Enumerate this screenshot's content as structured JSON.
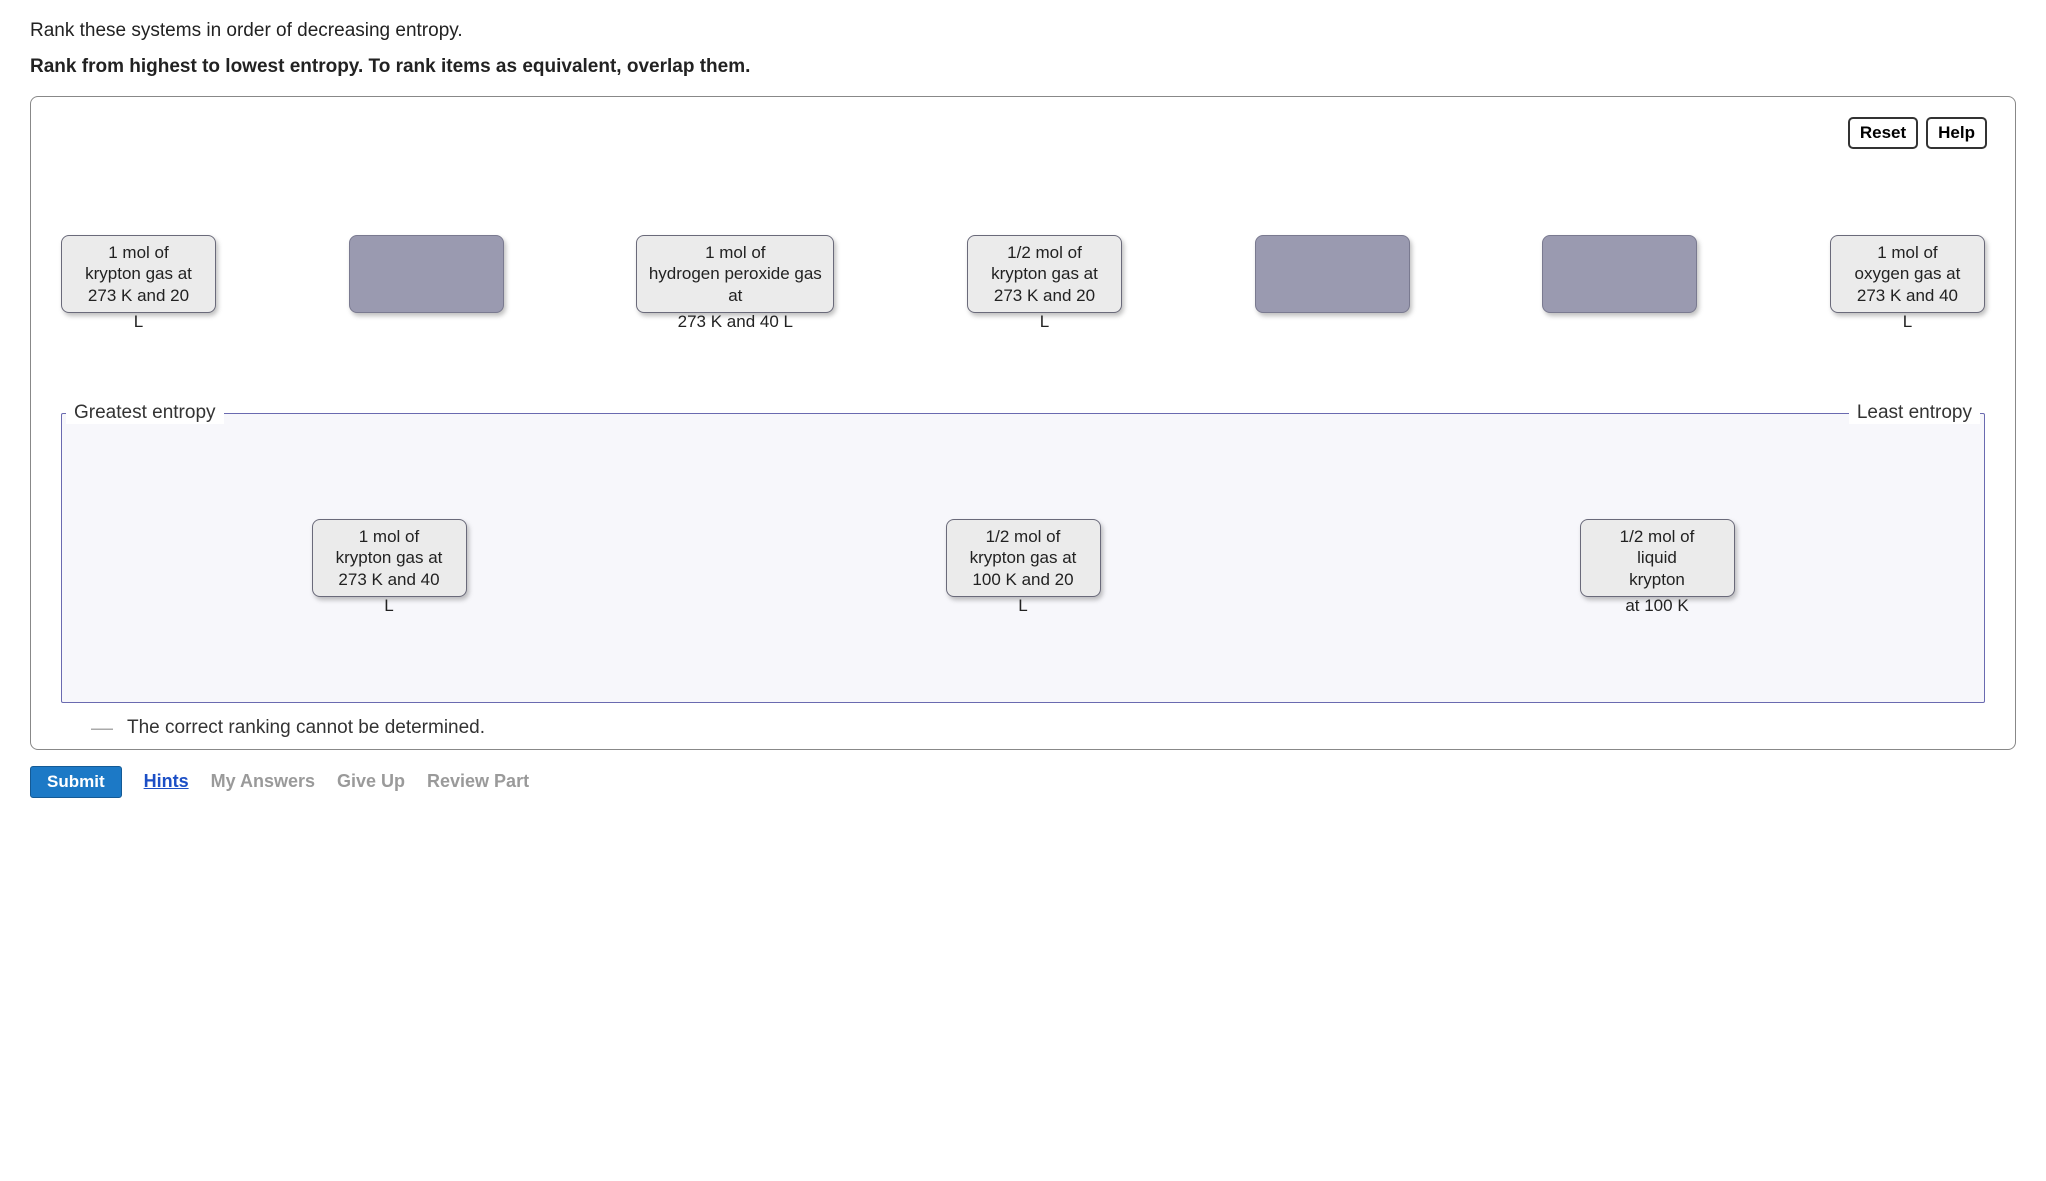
{
  "question": {
    "line1": "Rank these systems in order of decreasing entropy.",
    "line2_bold": "Rank from highest to lowest entropy. To rank items as equivalent, overlap them."
  },
  "toolbar": {
    "reset_label": "Reset",
    "help_label": "Help"
  },
  "pool": {
    "items": [
      {
        "kind": "card",
        "text_top": "1 mol of\nkrypton gas at\n273 K and 20",
        "text_overflow": "L"
      },
      {
        "kind": "empty"
      },
      {
        "kind": "card_wide",
        "text_top": "1 mol of\nhydrogen peroxide gas\nat",
        "text_overflow": "273 K and 40 L"
      },
      {
        "kind": "card",
        "text_top": "1/2 mol of\nkrypton gas at\n273 K and 20",
        "text_overflow": "L"
      },
      {
        "kind": "empty"
      },
      {
        "kind": "empty"
      },
      {
        "kind": "card",
        "text_top": "1 mol of\noxygen gas at\n273 K and 40",
        "text_overflow": "L"
      }
    ]
  },
  "dropzone": {
    "left_label": "Greatest entropy",
    "right_label": "Least entropy",
    "items": [
      {
        "text_top": "1 mol of\nkrypton gas at\n273 K and 40",
        "text_overflow": "L"
      },
      {
        "text_top": "1/2 mol of\nkrypton gas at\n100 K and 20",
        "text_overflow": "L"
      },
      {
        "text_top": "1/2 mol of\nliquid\nkrypton",
        "text_overflow": "at 100 K"
      }
    ]
  },
  "cannot_determine_label": "The correct ranking cannot be determined.",
  "actions": {
    "submit_label": "Submit",
    "hints_label": "Hints",
    "my_answers_label": "My Answers",
    "give_up_label": "Give Up",
    "review_part_label": "Review Part"
  },
  "styling": {
    "card_bg": "#ebebeb",
    "card_border": "#6a6a7a",
    "empty_bg": "#9a9ab0",
    "dropzone_border": "#6a6ab0",
    "submit_bg": "#1c79c6",
    "link_color": "#1c4fc6",
    "disabled_color": "#9a9a9a"
  }
}
